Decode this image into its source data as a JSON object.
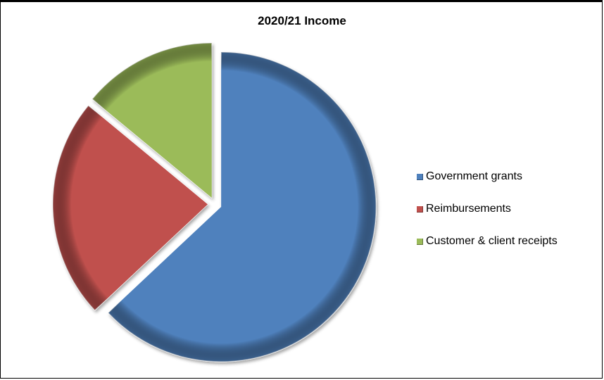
{
  "chart_data": {
    "type": "pie",
    "title": "2020/21 Income",
    "exploded": true,
    "legend_position": "right",
    "slices": [
      {
        "label": "Government grants",
        "value": 63,
        "color": "#4f81bd"
      },
      {
        "label": "Reimbursements",
        "value": 23,
        "color": "#c0504d"
      },
      {
        "label": "Customer & client receipts",
        "value": 14,
        "color": "#9bbb59"
      }
    ]
  }
}
